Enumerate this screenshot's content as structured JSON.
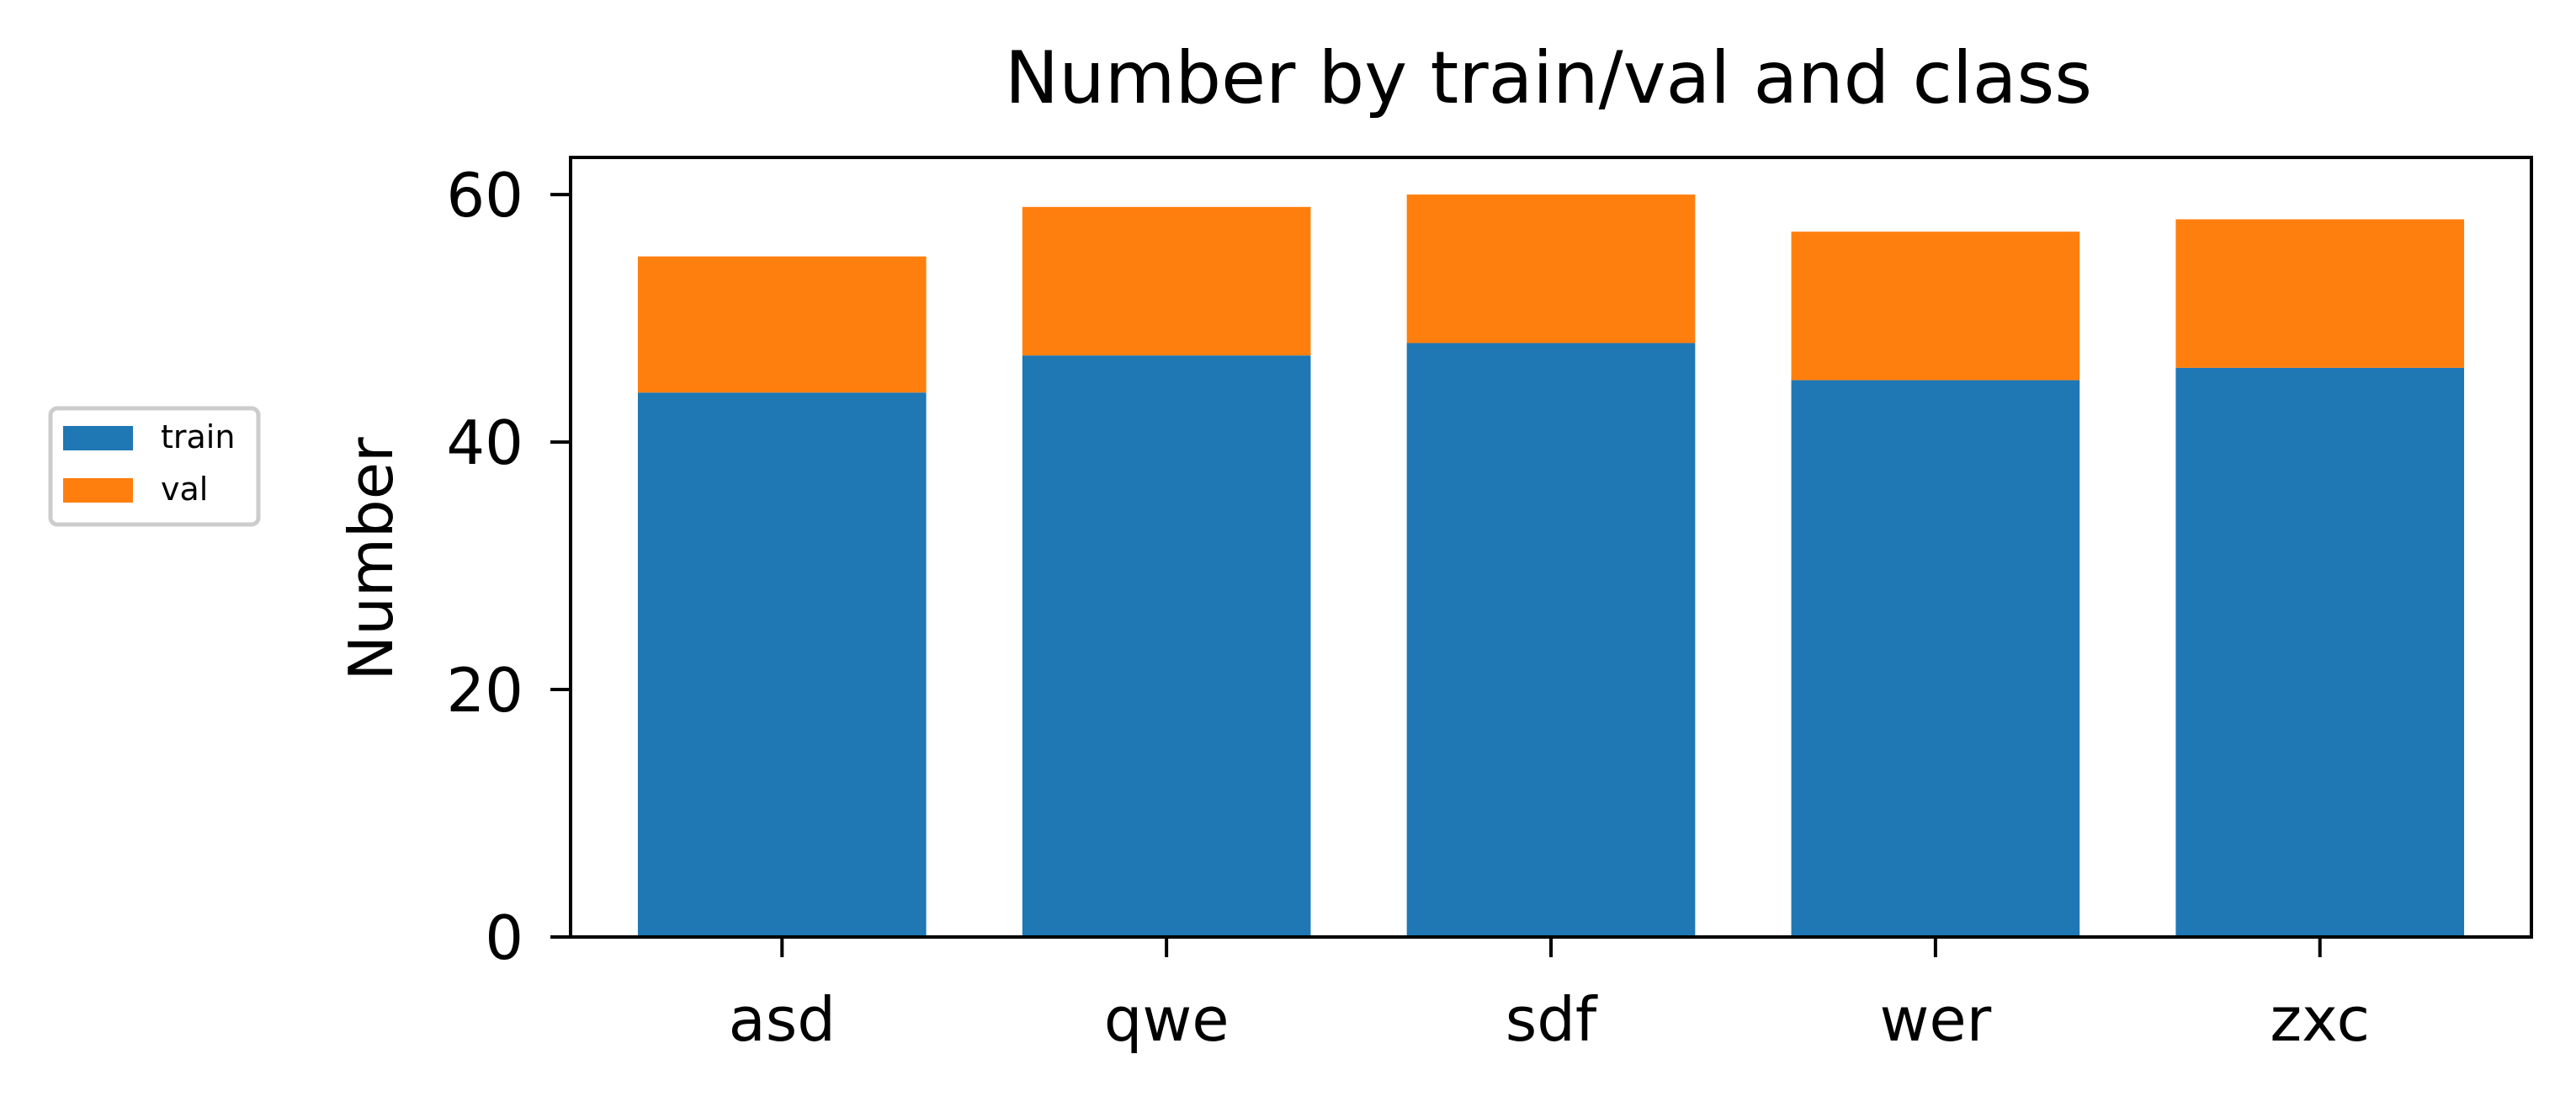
{
  "chart_data": {
    "type": "bar",
    "stacked": true,
    "title": "Number by train/val and class",
    "xlabel": "",
    "ylabel": "Number",
    "categories": [
      "asd",
      "qwe",
      "sdf",
      "wer",
      "zxc"
    ],
    "series": [
      {
        "name": "train",
        "values": [
          44,
          47,
          48,
          45,
          46
        ],
        "color": "#1f77b4"
      },
      {
        "name": "val",
        "values": [
          11,
          12,
          12,
          12,
          12
        ],
        "color": "#ff7f0e"
      }
    ],
    "ylim": [
      0,
      63
    ],
    "yticks": [
      0,
      20,
      40,
      60
    ],
    "grid": false,
    "legend_position": "left-center"
  }
}
